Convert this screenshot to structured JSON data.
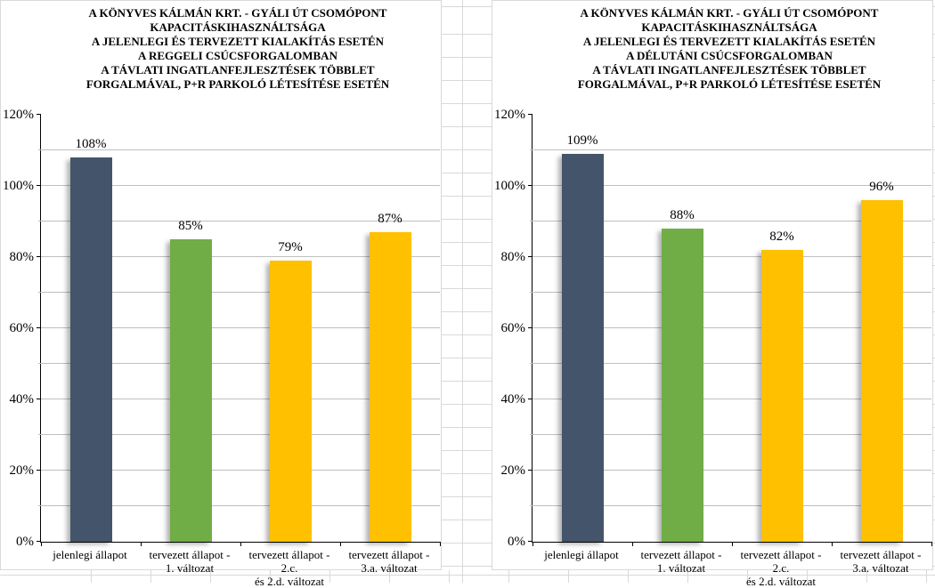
{
  "colors": {
    "bar_slate": "#44546A",
    "bar_green": "#70AD47",
    "bar_yellow": "#FFC000",
    "chart_gridline": "#BFBFBF",
    "cell_border": "#D9D9D9",
    "axis_line": "#000000"
  },
  "y_axis": {
    "tick_labels": [
      "0%",
      "20%",
      "40%",
      "60%",
      "80%",
      "100%",
      "120%"
    ],
    "tick_step": 20,
    "minor_step": 10
  },
  "chart_data": [
    {
      "type": "bar",
      "title": "A KÖNYVES KÁLMÁN KRT. - GYÁLI ÚT CSOMÓPONT KAPACITÁSKIHASZNÁLTSÁGA A JELENLEGI ÉS TERVEZETT KIALAKÍTÁS ESETÉN A REGGELI CSÚCSFORGALOMBAN A TÁVLATI INGATLANFEJLESZTÉSEK TÖBBLET FORGALMÁVAL, P+R PARKOLÓ LÉTESÍTÉSE ESETÉN",
      "title_lines": [
        "A KÖNYVES KÁLMÁN KRT. - GYÁLI ÚT CSOMÓPONT",
        "KAPACITÁSKIHASZNÁLTSÁGA",
        "A JELENLEGI ÉS TERVEZETT KIALAKÍTÁS ESETÉN",
        "A REGGELI CSÚCSFORGALOMBAN",
        "A TÁVLATI INGATLANFEJLESZTÉSEK TÖBBLET",
        "FORGALMÁVAL, P+R PARKOLÓ LÉTESÍTÉSE ESETÉN"
      ],
      "categories": [
        "jelenlegi állapot",
        "tervezett állapot - 1. változat",
        "tervezett állapot - 2.c. és 2.d. változat",
        "tervezett állapot - 3.a. változat"
      ],
      "category_lines": [
        [
          "jelenlegi állapot"
        ],
        [
          "tervezett állapot -",
          "1. változat"
        ],
        [
          "tervezett állapot - 2.c.",
          "és 2.d. változat"
        ],
        [
          "tervezett állapot -",
          "3.a. változat"
        ]
      ],
      "values": [
        108,
        85,
        79,
        87
      ],
      "value_labels": [
        "108%",
        "85%",
        "79%",
        "87%"
      ],
      "bar_colors": [
        "#44546A",
        "#70AD47",
        "#FFC000",
        "#FFC000"
      ],
      "xlabel": "",
      "ylabel": "",
      "ylim": [
        0,
        120
      ],
      "grid": true,
      "legend": false
    },
    {
      "type": "bar",
      "title": "A KÖNYVES KÁLMÁN KRT. - GYÁLI ÚT CSOMÓPONT KAPACITÁSKIHASZNÁLTSÁGA A JELENLEGI ÉS TERVEZETT KIALAKÍTÁS ESETÉN A DÉLUTÁNI CSÚCSFORGALOMBAN A TÁVLATI INGATLANFEJLESZTÉSEK TÖBBLET FORGALMÁVAL, P+R PARKOLÓ LÉTESÍTÉSE ESETÉN",
      "title_lines": [
        "A KÖNYVES KÁLMÁN KRT. - GYÁLI ÚT CSOMÓPONT",
        "KAPACITÁSKIHASZNÁLTSÁGA",
        "A JELENLEGI ÉS TERVEZETT KIALAKÍTÁS ESETÉN",
        "A DÉLUTÁNI CSÚCSFORGALOMBAN",
        "A TÁVLATI INGATLANFEJLESZTÉSEK TÖBBLET",
        "FORGALMÁVAL, P+R PARKOLÓ LÉTESÍTÉSE ESETÉN"
      ],
      "categories": [
        "jelenlegi állapot",
        "tervezett állapot - 1. változat",
        "tervezett állapot - 2.c. és 2.d. változat",
        "tervezett állapot - 3.a. változat"
      ],
      "category_lines": [
        [
          "jelenlegi állapot"
        ],
        [
          "tervezett állapot -",
          "1. változat"
        ],
        [
          "tervezett állapot - 2.c.",
          "és 2.d. változat"
        ],
        [
          "tervezett állapot -",
          "3.a. változat"
        ]
      ],
      "values": [
        109,
        88,
        82,
        96
      ],
      "value_labels": [
        "109%",
        "88%",
        "82%",
        "96%"
      ],
      "bar_colors": [
        "#44546A",
        "#70AD47",
        "#FFC000",
        "#FFC000"
      ],
      "xlabel": "",
      "ylabel": "",
      "ylim": [
        0,
        120
      ],
      "grid": true,
      "legend": false
    }
  ]
}
